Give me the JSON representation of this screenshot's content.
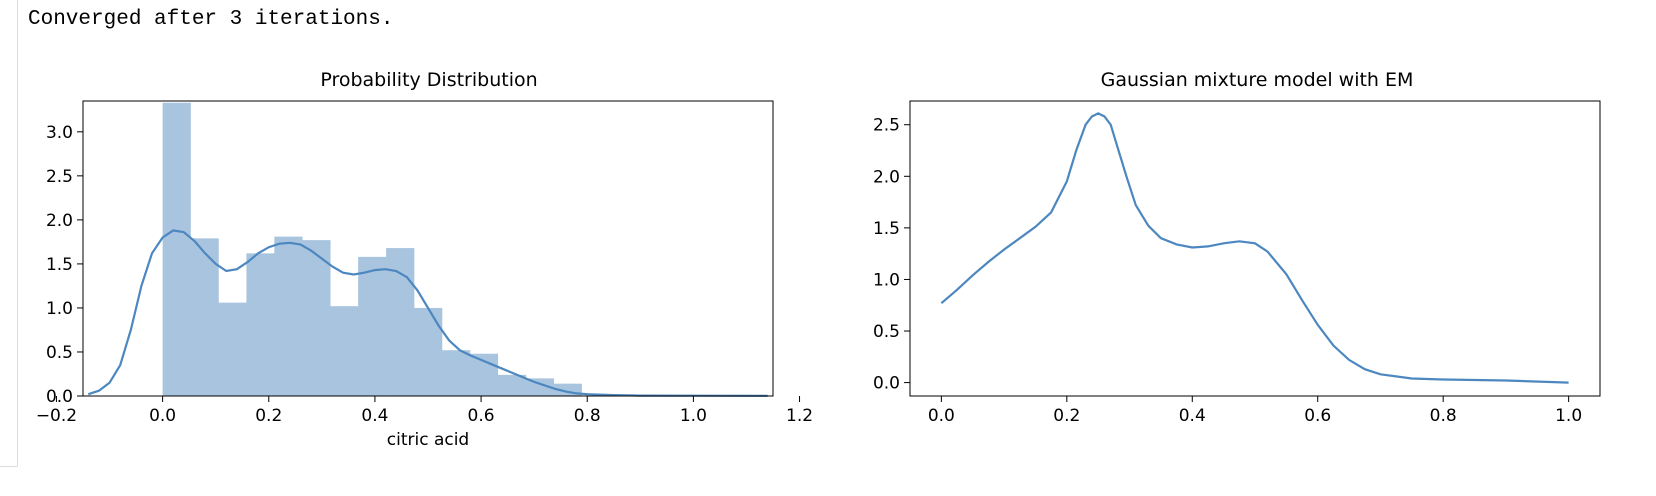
{
  "output": {
    "text": "Converged after 3 iterations."
  },
  "chart_data": [
    {
      "type": "bar",
      "title": "Probability Distribution",
      "xlabel": "citric acid",
      "ylabel": "",
      "xlim": [
        -0.15,
        1.15
      ],
      "ylim": [
        0.0,
        3.35
      ],
      "xticks": [
        "−0.2",
        "0.0",
        "0.2",
        "0.4",
        "0.6",
        "0.8",
        "1.0",
        "1.2"
      ],
      "xtick_values": [
        -0.2,
        0.0,
        0.2,
        0.4,
        0.6,
        0.8,
        1.0,
        1.2
      ],
      "yticks": [
        "0.0",
        "0.5",
        "1.0",
        "1.5",
        "2.0",
        "2.5",
        "3.0"
      ],
      "ytick_values": [
        0.0,
        0.5,
        1.0,
        1.5,
        2.0,
        2.5,
        3.0
      ],
      "histogram": {
        "bin_width": 0.0526,
        "bin_starts": [
          0.0,
          0.0526,
          0.1053,
          0.1579,
          0.2105,
          0.2632,
          0.3158,
          0.3684,
          0.4211,
          0.4737,
          0.5263,
          0.5789,
          0.6316,
          0.6842,
          0.7368
        ],
        "heights": [
          3.33,
          1.79,
          1.06,
          1.62,
          1.81,
          1.77,
          1.02,
          1.58,
          1.68,
          1.0,
          0.52,
          0.48,
          0.24,
          0.2,
          0.14
        ],
        "color": "#a9c4de"
      },
      "kde": {
        "x": [
          -0.14,
          -0.12,
          -0.1,
          -0.08,
          -0.06,
          -0.04,
          -0.02,
          0.0,
          0.02,
          0.04,
          0.06,
          0.08,
          0.1,
          0.12,
          0.14,
          0.16,
          0.18,
          0.2,
          0.22,
          0.24,
          0.26,
          0.28,
          0.3,
          0.32,
          0.34,
          0.36,
          0.38,
          0.4,
          0.42,
          0.44,
          0.46,
          0.48,
          0.5,
          0.52,
          0.54,
          0.56,
          0.58,
          0.6,
          0.62,
          0.64,
          0.66,
          0.68,
          0.7,
          0.72,
          0.74,
          0.76,
          0.78,
          0.8,
          0.85,
          0.9,
          1.0,
          1.14
        ],
        "y": [
          0.02,
          0.06,
          0.15,
          0.35,
          0.75,
          1.25,
          1.62,
          1.8,
          1.88,
          1.86,
          1.76,
          1.62,
          1.5,
          1.42,
          1.44,
          1.52,
          1.62,
          1.69,
          1.73,
          1.74,
          1.72,
          1.65,
          1.56,
          1.47,
          1.4,
          1.38,
          1.4,
          1.43,
          1.44,
          1.42,
          1.35,
          1.2,
          1.0,
          0.8,
          0.63,
          0.52,
          0.46,
          0.41,
          0.36,
          0.31,
          0.26,
          0.21,
          0.16,
          0.12,
          0.08,
          0.05,
          0.03,
          0.02,
          0.01,
          0.005,
          0.003,
          0.002
        ],
        "color": "#4c87c0"
      }
    },
    {
      "type": "line",
      "title": "Gaussian mixture model with EM",
      "xlabel": "",
      "ylabel": "",
      "xlim": [
        -0.05,
        1.05
      ],
      "ylim": [
        -0.13,
        2.73
      ],
      "xticks": [
        "0.0",
        "0.2",
        "0.4",
        "0.6",
        "0.8",
        "1.0"
      ],
      "xtick_values": [
        0.0,
        0.2,
        0.4,
        0.6,
        0.8,
        1.0
      ],
      "yticks": [
        "0.0",
        "0.5",
        "1.0",
        "1.5",
        "2.0",
        "2.5"
      ],
      "ytick_values": [
        0.0,
        0.5,
        1.0,
        1.5,
        2.0,
        2.5
      ],
      "series": [
        {
          "x": [
            0.0,
            0.025,
            0.05,
            0.075,
            0.1,
            0.125,
            0.15,
            0.175,
            0.2,
            0.215,
            0.23,
            0.24,
            0.25,
            0.26,
            0.27,
            0.28,
            0.295,
            0.31,
            0.33,
            0.35,
            0.375,
            0.4,
            0.425,
            0.45,
            0.475,
            0.5,
            0.52,
            0.55,
            0.575,
            0.6,
            0.625,
            0.65,
            0.675,
            0.7,
            0.75,
            0.8,
            0.9,
            1.0
          ],
          "y": [
            0.77,
            0.9,
            1.04,
            1.17,
            1.29,
            1.4,
            1.51,
            1.65,
            1.95,
            2.25,
            2.5,
            2.58,
            2.61,
            2.58,
            2.5,
            2.3,
            2.0,
            1.72,
            1.52,
            1.4,
            1.34,
            1.31,
            1.32,
            1.35,
            1.37,
            1.35,
            1.27,
            1.05,
            0.8,
            0.56,
            0.36,
            0.22,
            0.13,
            0.08,
            0.04,
            0.03,
            0.02,
            0.0
          ],
          "color": "#4c87c0"
        }
      ]
    }
  ]
}
